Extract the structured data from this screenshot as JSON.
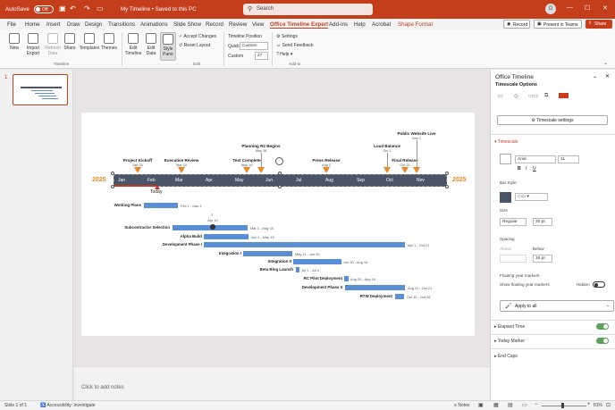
{
  "titlebar": {
    "autosave_label": "AutoSave",
    "autosave_state": "Off",
    "doc_title": "My Timeline • Saved to this PC",
    "search_placeholder": "Search",
    "user_initials": "O"
  },
  "tabs": [
    {
      "label": "File"
    },
    {
      "label": "Home"
    },
    {
      "label": "Insert"
    },
    {
      "label": "Draw"
    },
    {
      "label": "Design"
    },
    {
      "label": "Transitions"
    },
    {
      "label": "Animations"
    },
    {
      "label": "Slide Show"
    },
    {
      "label": "Record"
    },
    {
      "label": "Review"
    },
    {
      "label": "View"
    },
    {
      "label": "Office Timeline Expert"
    },
    {
      "label": "Add-ins"
    },
    {
      "label": "Help"
    },
    {
      "label": "Acrobat"
    },
    {
      "label": "Shape Format"
    }
  ],
  "tab_actions": {
    "record": "Record",
    "present_teams": "Present in Teams",
    "share": "Share"
  },
  "ribbon": {
    "new": "New",
    "import_export": "Import\nExport",
    "refresh_data": "Refresh\nData",
    "share": "Share",
    "templates": "Templates",
    "themes": "Themes",
    "group_timeline": "Timeline",
    "edit_timeline": "Edit\nTimeline",
    "edit_data": "Edit\nData",
    "style_pane": "Style\nPane",
    "accept_changes": "Accept Changes",
    "reset_layout": "Reset Layout",
    "group_edit": "Edit",
    "timeline_position": "Timeline Position",
    "quick_label": "Quick",
    "quick_value": "Custom",
    "custom_label": "Custom",
    "custom_value": "27",
    "settings": "Settings",
    "send_feedback": "Send Feedback",
    "help": "Help",
    "group_addin": "Add-in"
  },
  "slide_thumb_number": "1",
  "timeline": {
    "year_left": "2025",
    "year_right": "2025",
    "today_label": "Today",
    "months": [
      "Jan",
      "Feb",
      "Mar",
      "Apr",
      "May",
      "Jun",
      "Jul",
      "Aug",
      "Sep",
      "Oct",
      "Nov"
    ],
    "milestones": [
      {
        "title": "Project Kickoff",
        "date": "Jan 25"
      },
      {
        "title": "Executive Review",
        "date": "Mar 10"
      },
      {
        "title": "Test Complete",
        "date": "May 14"
      },
      {
        "title": "Planning R2 Begins",
        "date": "May 26"
      },
      {
        "title": "Press Release",
        "date": "Aug 2"
      },
      {
        "title": "Load Balance",
        "date": "Oct 2"
      },
      {
        "title": "Final Release",
        "date": "Oct 20"
      },
      {
        "title": "Public Website Live",
        "date": "Nov 1"
      }
    ],
    "tasks": [
      {
        "name": "Working Plans",
        "dates": "Feb 1 - Mar 1"
      },
      {
        "name": "Subcontractor Selection",
        "dates": "Mar 1 - May 10"
      },
      {
        "name": "Alpha Build",
        "dates": "Apr 1 - May 13"
      },
      {
        "name": "Development Phase I",
        "dates": "Apr 1 - Oct 21"
      },
      {
        "name": "Integration I",
        "dates": "May 11 - Jun 30"
      },
      {
        "name": "Integration II",
        "dates": "Jun 30 - Aug 10"
      },
      {
        "name": "Beta Blog Launch",
        "dates": "Jul 1 - Jul 4"
      },
      {
        "name": "RC Pilot Deployment",
        "dates": "Aug 20 - Aug 24"
      },
      {
        "name": "Development Phase II",
        "dates": "Aug 21 - Oct 21"
      },
      {
        "name": "RTW Deployment",
        "dates": "Oct 10 - Oct 28"
      }
    ],
    "sub_milestone_date": "Apr 10"
  },
  "notes_placeholder": "Click to add notes",
  "panel": {
    "title": "Office Timeline",
    "timescale_options": "Timescale Options",
    "timescale_settings_btn": "Timescale settings",
    "section_timescale": "Timescale",
    "font_name": "Arial",
    "font_size": "11",
    "bar_style": "Bar Style",
    "size_label": "Size",
    "size_value": "Regular",
    "size_pt": "30 pt",
    "spacing_label": "Spacing",
    "spacing_above": "Above",
    "spacing_below": "Below",
    "spacing_below_value": "16 pt",
    "floating_year": "Floating year markers",
    "show_floating": "Show floating year markers",
    "hidden_label": "Hidden",
    "apply_all": "Apply to all",
    "elapsed_time": "Elapsed Time",
    "today_marker": "Today Marker",
    "end_caps": "End Caps"
  },
  "status": {
    "slide": "Slide 1 of 1",
    "accessibility": "Accessibility: Investigate",
    "notes": "Notes",
    "zoom": "81%"
  },
  "colors": {
    "accent": "#c43e1c",
    "timeline_bar": "#4a5568",
    "task": "#5b8fd4",
    "milestone": "#e8892b",
    "year": "#e8892b"
  }
}
